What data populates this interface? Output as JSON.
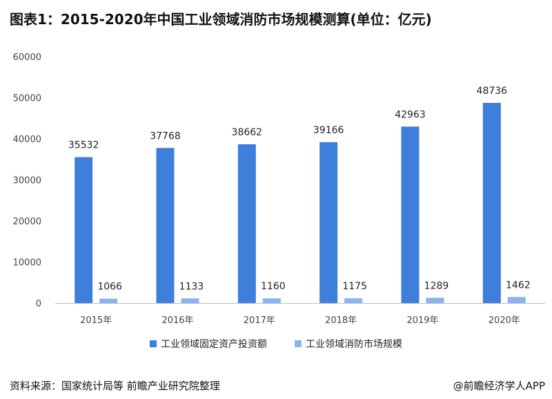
{
  "title": "图表1：2015-2020年中国工业领域消防市场规模测算(单位：亿元)",
  "colors": {
    "series1": "#3f7fdc",
    "series2": "#8ab4ef",
    "axis": "#bfbfbf"
  },
  "chart_data": {
    "type": "bar",
    "categories": [
      "2015年",
      "2016年",
      "2017年",
      "2018年",
      "2019年",
      "2020年"
    ],
    "series": [
      {
        "name": "工业领域固定资产投资额",
        "values": [
          35532,
          37768,
          38662,
          39166,
          42963,
          48736
        ]
      },
      {
        "name": "工业领域消防市场规模",
        "values": [
          1066,
          1133,
          1160,
          1175,
          1289,
          1462
        ]
      }
    ],
    "yticks": [
      "0",
      "10000",
      "20000",
      "30000",
      "40000",
      "50000",
      "60000"
    ],
    "ylim": [
      0,
      60000
    ],
    "grid": false,
    "legend": "bottom"
  },
  "source": "资料来源：国家统计局等 前瞻产业研究院整理",
  "brand": "@前瞻经济学人APP"
}
